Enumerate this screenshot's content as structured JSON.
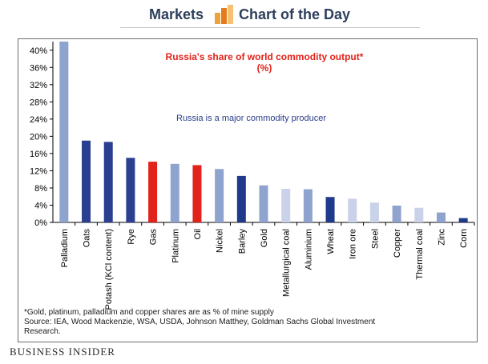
{
  "header": {
    "left": "Markets",
    "right": "Chart of the Day"
  },
  "chart_data": {
    "type": "bar",
    "title": "Russia's share of world commodity output*",
    "subtitle": "(%)",
    "annotation": "Russia is a major commodity producer",
    "categories": [
      "Palladium",
      "Oats",
      "Potash (KCl content)",
      "Rye",
      "Gas",
      "Platinum",
      "Oil",
      "Nickel",
      "Barley",
      "Gold",
      "Metallurgical coal",
      "Aluminium",
      "Wheat",
      "Iron ore",
      "Steel",
      "Copper",
      "Thermal coal",
      "Zinc",
      "Corn"
    ],
    "values": [
      42.0,
      19.0,
      18.7,
      15.0,
      14.1,
      13.6,
      13.3,
      12.4,
      10.8,
      8.6,
      7.8,
      7.7,
      5.9,
      5.5,
      4.6,
      3.9,
      3.4,
      2.3,
      1.0
    ],
    "colors": [
      "#8fa3cf",
      "#2a3f8f",
      "#2a3f8f",
      "#2a3f8f",
      "#e2231a",
      "#8fa3cf",
      "#e2231a",
      "#8fa3cf",
      "#1f3a8a",
      "#8fa3cf",
      "#c9d2e8",
      "#8fa3cf",
      "#1f3a8a",
      "#c9d2e8",
      "#c9d2e8",
      "#8fa3cf",
      "#c9d2e8",
      "#8fa3cf",
      "#1f3a8a"
    ],
    "yticks": [
      "40%",
      "36%",
      "32%",
      "28%",
      "24%",
      "20%",
      "16%",
      "12%",
      "8%",
      "4%",
      "0%"
    ],
    "ylim": [
      0,
      42
    ],
    "grid": false,
    "xlabel": "",
    "ylabel": ""
  },
  "footnote": {
    "line1": "*Gold, platinum, palladium and copper shares are as % of mine supply",
    "line2": "Source: IEA, Wood Mackenzie, WSA, USDA, Johnson Matthey, Goldman Sachs Global Investment",
    "line3": "Research."
  },
  "brand": "BUSINESS INSIDER"
}
